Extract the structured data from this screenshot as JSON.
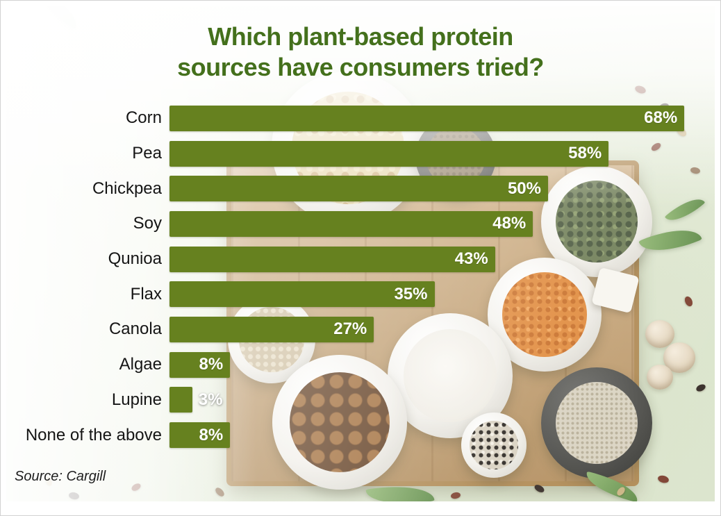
{
  "chart_data": {
    "type": "bar",
    "orientation": "horizontal",
    "title": "Which plant-based protein sources have consumers tried?",
    "title_lines": [
      "Which plant-based protein",
      "sources have consumers tried?"
    ],
    "categories": [
      "Corn",
      "Pea",
      "Chickpea",
      "Soy",
      "Qunioa",
      "Flax",
      "Canola",
      "Algae",
      "Lupine",
      "None of the above"
    ],
    "values": [
      68,
      58,
      50,
      48,
      43,
      35,
      27,
      8,
      3,
      8
    ],
    "value_labels": [
      "68%",
      "58%",
      "50%",
      "48%",
      "43%",
      "35%",
      "27%",
      "8%",
      "3%",
      "8%"
    ],
    "xlim": [
      0,
      70
    ],
    "grid": false,
    "legend": false,
    "bar_color": "#66811f",
    "title_color": "#44701c",
    "source": "Source: Cargill"
  }
}
